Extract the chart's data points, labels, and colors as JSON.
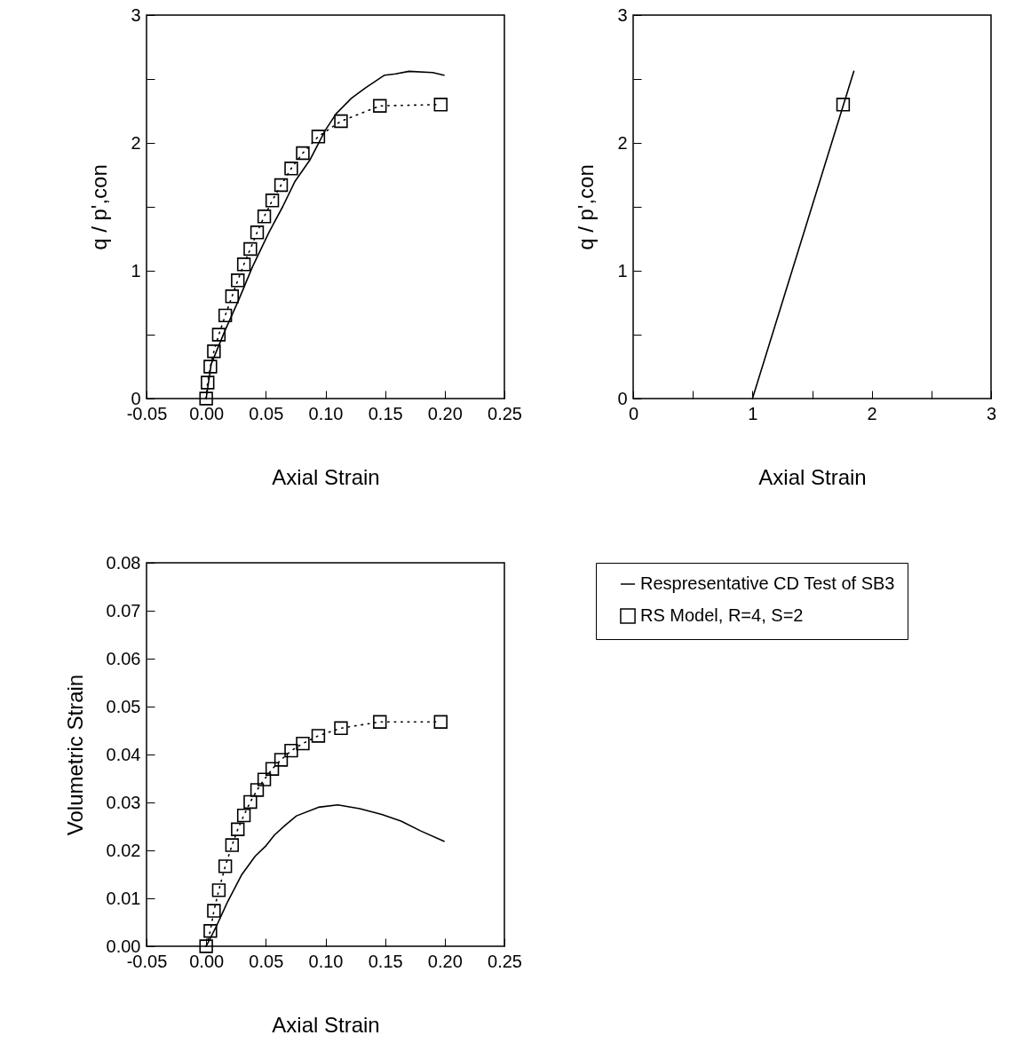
{
  "chart_data": [
    {
      "type": "line",
      "xlabel": "Axial Strain",
      "ylabel": "q / p',con",
      "grid": false,
      "xlim": [
        -0.05,
        0.25
      ],
      "xticks": [
        {
          "value": -0.05,
          "label": "-0.05"
        },
        {
          "value": 0,
          "label": "0.00"
        },
        {
          "value": 0.05,
          "label": "0.05"
        },
        {
          "value": 0.1,
          "label": "0.10"
        },
        {
          "value": 0.15,
          "label": "0.15"
        },
        {
          "value": 0.2,
          "label": "0.20"
        },
        {
          "value": 0.25,
          "label": "0.25"
        }
      ],
      "ylim": [
        0,
        3
      ],
      "yticks": [
        0,
        {
          "value": 0.5,
          "label": null
        },
        1,
        {
          "value": 1.5,
          "label": null
        },
        2,
        {
          "value": 2.5,
          "label": null
        },
        3
      ],
      "series": [
        {
          "color": "#000000",
          "line_style": "solid",
          "marker": "none",
          "x": [
            0,
            0.0042,
            0.0157,
            0.0272,
            0.0388,
            0.0526,
            0.0641,
            0.0745,
            0.0872,
            0.0999,
            0.1091,
            0.1218,
            0.1334,
            0.1495,
            0.1587,
            0.17,
            0.19,
            0.1994
          ],
          "values": [
            0,
            0.27,
            0.53,
            0.77,
            1.03,
            1.3,
            1.5,
            1.7,
            1.87,
            2.1,
            2.23,
            2.35,
            2.43,
            2.53,
            2.54,
            2.56,
            2.55,
            2.53
          ]
        },
        {
          "color": "#000000",
          "line_style": "dotted",
          "marker": "square",
          "x": [
            0,
            0.0012,
            0.0035,
            0.0065,
            0.0106,
            0.016,
            0.0217,
            0.0265,
            0.0316,
            0.037,
            0.0427,
            0.0487,
            0.0554,
            0.0628,
            0.0713,
            0.081,
            0.094,
            0.113,
            0.1456,
            0.1966
          ],
          "values": [
            0,
            0.125,
            0.25,
            0.37,
            0.5,
            0.65,
            0.8,
            0.925,
            1.05,
            1.17,
            1.3,
            1.425,
            1.55,
            1.67,
            1.8,
            1.92,
            2.05,
            2.17,
            2.29,
            2.3
          ]
        }
      ]
    },
    {
      "type": "line",
      "xlabel": "Axial Strain",
      "ylabel": "q / p',con",
      "grid": false,
      "xlim": [
        0,
        3
      ],
      "xticks": [
        0,
        {
          "value": 0.5,
          "label": null
        },
        1,
        {
          "value": 1.5,
          "label": null
        },
        2,
        {
          "value": 2.5,
          "label": null
        },
        3
      ],
      "ylim": [
        0,
        3
      ],
      "yticks": [
        0,
        {
          "value": 0.5,
          "label": null
        },
        1,
        {
          "value": 1.5,
          "label": null
        },
        2,
        {
          "value": 2.5,
          "label": null
        },
        3
      ],
      "series": [
        {
          "color": "#000000",
          "line_style": "solid",
          "marker": "none",
          "x": [
            1,
            1.85
          ],
          "values": [
            0,
            2.56
          ]
        },
        {
          "color": "#000000",
          "line_style": "dotted",
          "marker": "square",
          "x": [
            1.76
          ],
          "values": [
            2.3
          ]
        }
      ]
    },
    {
      "type": "line",
      "xlabel": "Axial Strain",
      "ylabel": "Volumetric Strain",
      "grid": false,
      "legend": "right",
      "xlim": [
        -0.05,
        0.25
      ],
      "xticks": [
        {
          "value": -0.05,
          "label": "-0.05"
        },
        {
          "value": 0,
          "label": "0.00"
        },
        {
          "value": 0.05,
          "label": "0.05"
        },
        {
          "value": 0.1,
          "label": "0.10"
        },
        {
          "value": 0.15,
          "label": "0.15"
        },
        {
          "value": 0.2,
          "label": "0.20"
        },
        {
          "value": 0.25,
          "label": "0.25"
        }
      ],
      "ylim": [
        0,
        0.08
      ],
      "yticks": [
        {
          "value": 0,
          "label": "0.00"
        },
        {
          "value": 0.01,
          "label": "0.01"
        },
        {
          "value": 0.02,
          "label": "0.02"
        },
        {
          "value": 0.03,
          "label": "0.03"
        },
        {
          "value": 0.04,
          "label": "0.04"
        },
        {
          "value": 0.05,
          "label": "0.05"
        },
        {
          "value": 0.06,
          "label": "0.06"
        },
        {
          "value": 0.07,
          "label": "0.07"
        },
        {
          "value": 0.08,
          "label": "0.08"
        }
      ],
      "series": [
        {
          "name": "Respresentative CD Test of SB3",
          "color": "#000000",
          "line_style": "solid",
          "marker": "none",
          "x": [
            0,
            0.0088,
            0.018,
            0.0295,
            0.0411,
            0.0503,
            0.0572,
            0.0665,
            0.0757,
            0.0941,
            0.1103,
            0.1288,
            0.1472,
            0.1634,
            0.1795,
            0.1994
          ],
          "values": [
            0,
            0.0043,
            0.0093,
            0.0148,
            0.0188,
            0.021,
            0.0232,
            0.0253,
            0.0272,
            0.029,
            0.0295,
            0.0287,
            0.0275,
            0.0261,
            0.0241,
            0.0219
          ]
        },
        {
          "name": "RS Model, R=4, S=2",
          "color": "#000000",
          "line_style": "dotted",
          "marker": "square",
          "x": [
            0,
            0.0035,
            0.0065,
            0.0106,
            0.016,
            0.0217,
            0.0265,
            0.0316,
            0.037,
            0.0427,
            0.0487,
            0.0554,
            0.0628,
            0.0713,
            0.081,
            0.094,
            0.113,
            0.1456,
            0.1966
          ],
          "values": [
            0,
            0.0032,
            0.0074,
            0.0117,
            0.0167,
            0.0211,
            0.0244,
            0.0273,
            0.0301,
            0.0326,
            0.0348,
            0.037,
            0.0389,
            0.0408,
            0.0423,
            0.0439,
            0.0455,
            0.0468,
            0.0468
          ]
        }
      ]
    }
  ]
}
